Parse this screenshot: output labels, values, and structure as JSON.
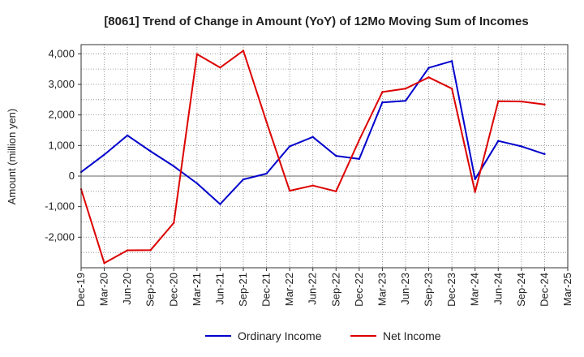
{
  "chart_data": {
    "type": "line",
    "title": "[8061]  Trend of Change in Amount (YoY) of 12Mo Moving Sum of Incomes",
    "xlabel": "",
    "ylabel": "Amount (million yen)",
    "x": [
      "Dec-19",
      "Mar-20",
      "Jun-20",
      "Sep-20",
      "Dec-20",
      "Mar-21",
      "Jun-21",
      "Sep-21",
      "Dec-21",
      "Mar-22",
      "Jun-22",
      "Sep-22",
      "Dec-22",
      "Mar-23",
      "Jun-23",
      "Sep-23",
      "Dec-23",
      "Mar-24",
      "Jun-24",
      "Sep-24",
      "Dec-24",
      "Mar-25"
    ],
    "ylim": [
      -3000,
      4300
    ],
    "yticks": [
      4000,
      3000,
      2000,
      1000,
      0,
      -1000,
      -2000
    ],
    "ytick_labels": [
      "4,000",
      "3,000",
      "2,000",
      "1,000",
      "0",
      "-1,000",
      "-2,000"
    ],
    "grid": true,
    "zero_line": true,
    "legend_position": "bottom",
    "series": [
      {
        "name": "Ordinary Income",
        "color": "#0000cc",
        "values": [
          130,
          700,
          1330,
          810,
          320,
          -240,
          -920,
          -110,
          80,
          970,
          1280,
          660,
          560,
          2410,
          2460,
          3540,
          3760,
          -100,
          1150,
          970,
          720,
          null
        ]
      },
      {
        "name": "Net Income",
        "color": "#dd0000",
        "values": [
          -430,
          -2850,
          -2430,
          -2420,
          -1530,
          3990,
          3550,
          4100,
          1770,
          -480,
          -310,
          -500,
          1180,
          2750,
          2860,
          3230,
          2860,
          -520,
          2450,
          2440,
          2340,
          null
        ]
      }
    ]
  }
}
